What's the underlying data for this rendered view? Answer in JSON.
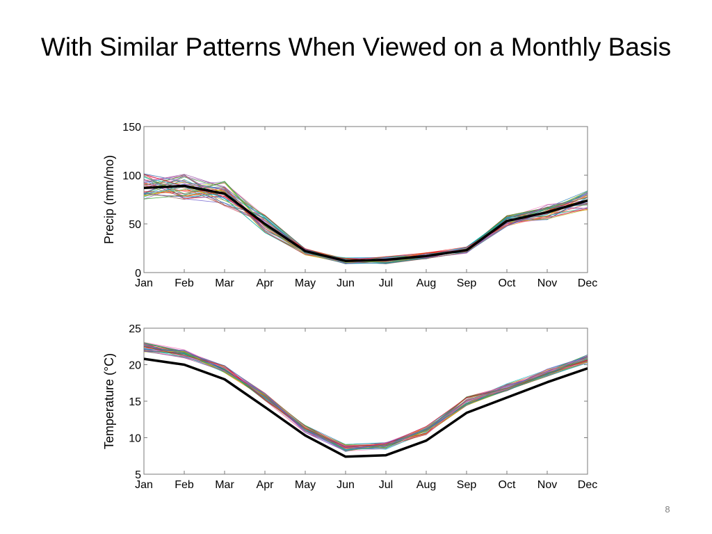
{
  "slide": {
    "title": "With Similar Patterns When Viewed on a Monthly Basis",
    "page_number": "8"
  },
  "chart_data": [
    {
      "type": "line",
      "title": "",
      "xlabel": "",
      "ylabel": "Precip (mm/mo)",
      "categories": [
        "Jan",
        "Feb",
        "Mar",
        "Apr",
        "May",
        "Jun",
        "Jul",
        "Aug",
        "Sep",
        "Oct",
        "Nov",
        "Dec"
      ],
      "ylim": [
        0,
        150
      ],
      "yticks": [
        0,
        50,
        100,
        150
      ],
      "grid": false,
      "legend": "none",
      "highlight": {
        "color": "#000000",
        "values": [
          87,
          89,
          81,
          50,
          22,
          12,
          13,
          17,
          23,
          53,
          62,
          74
        ]
      },
      "ensemble": {
        "count": 40,
        "spread": [
          15,
          14,
          13,
          9,
          4,
          3.5,
          4,
          3.5,
          3.5,
          5.5,
          8,
          10
        ],
        "colors": [
          "#e41a1c",
          "#377eb8",
          "#4daf4a",
          "#984ea3",
          "#ff7f00",
          "#a6a600",
          "#a65628",
          "#f781bf",
          "#17becf",
          "#1f77b4",
          "#2ca02c",
          "#d62728",
          "#9467bd",
          "#8c564b",
          "#bcbd22",
          "#00a0a0",
          "#6a5acd",
          "#ff69b4"
        ]
      }
    },
    {
      "type": "line",
      "title": "",
      "xlabel": "",
      "ylabel": "Temperature (°C)",
      "categories": [
        "Jan",
        "Feb",
        "Mar",
        "Apr",
        "May",
        "Jun",
        "Jul",
        "Aug",
        "Sep",
        "Oct",
        "Nov",
        "Dec"
      ],
      "ylim": [
        5,
        25
      ],
      "yticks": [
        5,
        10,
        15,
        20,
        25
      ],
      "grid": false,
      "legend": "none",
      "highlight": {
        "color": "#000000",
        "values": [
          20.8,
          20.0,
          18.0,
          14.2,
          10.3,
          7.4,
          7.6,
          9.6,
          13.4,
          15.5,
          17.6,
          19.5
        ]
      },
      "ensemble": {
        "count": 40,
        "offset": [
          1.6,
          1.5,
          1.4,
          1.4,
          0.9,
          1.2,
          1.3,
          1.4,
          1.6,
          1.4,
          1.3,
          1.3
        ],
        "spread": [
          0.7,
          0.6,
          0.5,
          0.5,
          0.5,
          0.5,
          0.5,
          0.6,
          0.6,
          0.5,
          0.5,
          0.6
        ],
        "colors": [
          "#e41a1c",
          "#377eb8",
          "#4daf4a",
          "#984ea3",
          "#ff7f00",
          "#a6a600",
          "#a65628",
          "#f781bf",
          "#17becf",
          "#1f77b4",
          "#2ca02c",
          "#d62728",
          "#9467bd",
          "#8c564b",
          "#bcbd22",
          "#00a0a0",
          "#6a5acd",
          "#ff69b4"
        ]
      }
    }
  ]
}
